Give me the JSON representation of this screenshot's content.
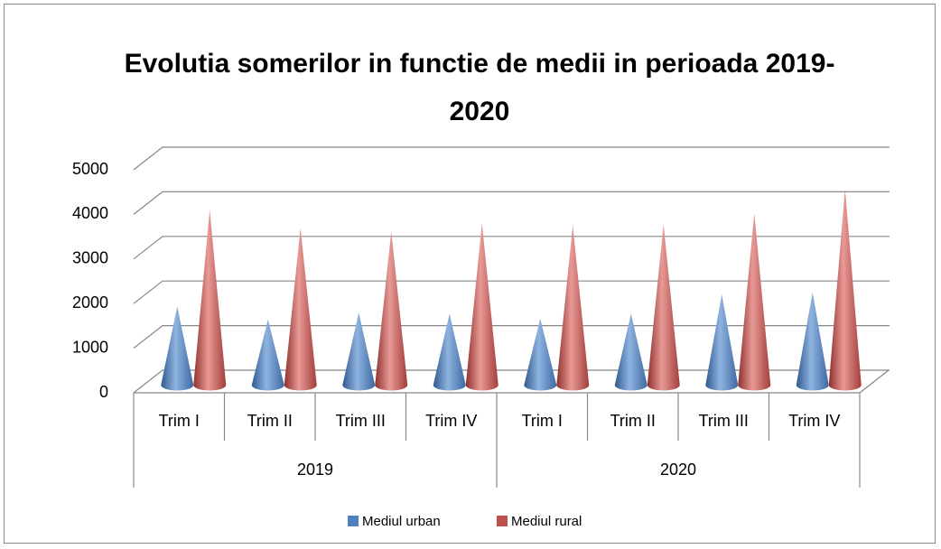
{
  "chart_data": {
    "type": "cone3d",
    "title": "Evolutia somerilor in functie de medii in perioada 2019- 2020",
    "categories": [
      "Trim I",
      "Trim II",
      "Trim III",
      "Trim IV",
      "Trim I",
      "Trim II",
      "Trim III",
      "Trim IV"
    ],
    "category_groups": [
      "2019",
      "2020"
    ],
    "series": [
      {
        "name": "Mediul urban",
        "color": "#4f81bd",
        "values": [
          1680,
          1390,
          1540,
          1520,
          1410,
          1520,
          1950,
          2000
        ]
      },
      {
        "name": "Mediul rural",
        "color": "#c0504d",
        "values": [
          3850,
          3440,
          3360,
          3550,
          3500,
          3520,
          3770,
          4320
        ]
      }
    ],
    "ylim": [
      0,
      5000
    ],
    "yticks": [
      0,
      1000,
      2000,
      3000,
      4000,
      5000
    ],
    "grid": true,
    "legend": "bottom"
  }
}
